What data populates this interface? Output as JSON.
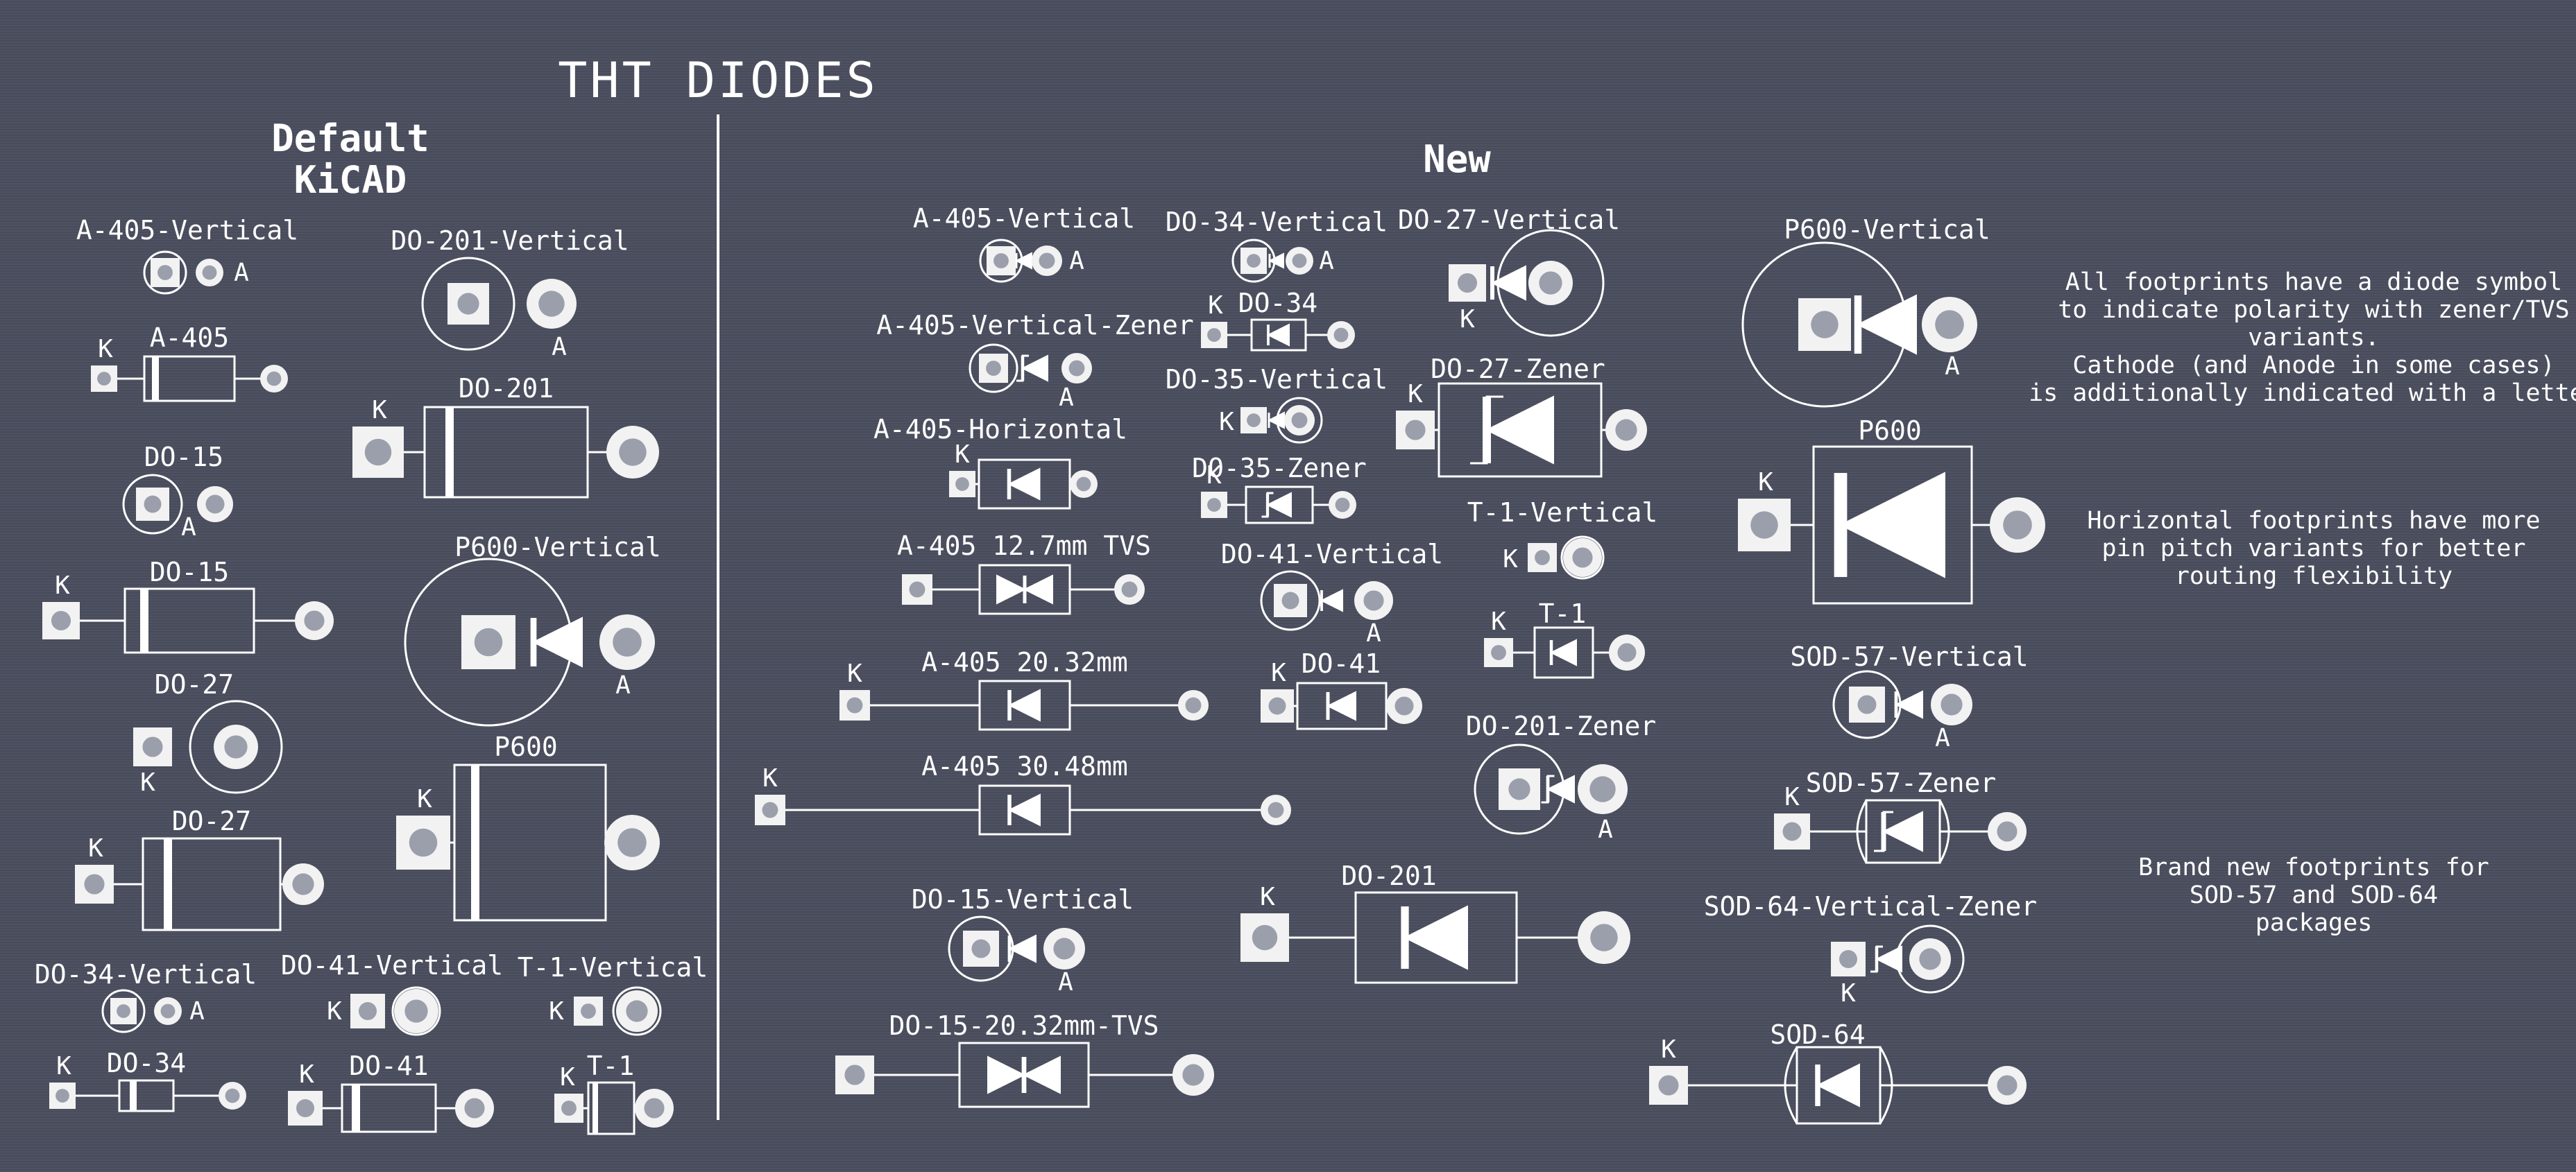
{
  "title": "THT DIODES",
  "headings": {
    "default": [
      "Default",
      "KiCAD"
    ],
    "new": "New"
  },
  "footprints": {
    "a405v": "A-405-Vertical",
    "a405": "A-405",
    "do201v": "DO-201-Vertical",
    "do201": "DO-201",
    "do15": "DO-15",
    "do15h": "DO-15",
    "p600v": "P600-Vertical",
    "do27": "DO-27",
    "do27h": "DO-27",
    "p600": "P600",
    "do34v": "DO-34-Vertical",
    "do41v": "DO-41-Vertical",
    "t1v": "T-1-Vertical",
    "do34": "DO-34",
    "do41": "DO-41",
    "t1": "T-1",
    "n_a405v": "A-405-Vertical",
    "n_a405vz": "A-405-Vertical-Zener",
    "n_a405h": "A-405-Horizontal",
    "n_a405tvs": "A-405 12.7mm TVS",
    "n_a405_20": "A-405 20.32mm",
    "n_a405_30": "A-405 30.48mm",
    "n_do15v": "DO-15-Vertical",
    "n_do15tvs": "DO-15-20.32mm-TVS",
    "n_do34v": "DO-34-Vertical",
    "n_do34": "DO-34",
    "n_do35v": "DO-35-Vertical",
    "n_do35z": "DO-35-Zener",
    "n_do41v": "DO-41-Vertical",
    "n_do41": "DO-41",
    "n_do201": "DO-201",
    "n_do27v": "DO-27-Vertical",
    "n_do27z": "DO-27-Zener",
    "n_t1v": "T-1-Vertical",
    "n_t1": "T-1",
    "n_do201z": "DO-201-Zener",
    "n_p600v": "P600-Vertical",
    "n_p600": "P600",
    "n_sod57v": "SOD-57-Vertical",
    "n_sod57z": "SOD-57-Zener",
    "n_sod64vz": "SOD-64-Vertical-Zener",
    "n_sod64": "SOD-64"
  },
  "pin_letters": {
    "cathode": "K",
    "anode": "A"
  },
  "notes": [
    [
      "All footprints have a diode symbol",
      "to indicate polarity with zener/TVS",
      "variants.",
      "Cathode (and Anode in some cases)",
      "is additionally indicated with a letter"
    ],
    [
      "Horizontal footprints have more",
      "pin pitch variants for better",
      "routing flexibility"
    ],
    [
      "Brand new footprints for",
      "SOD-57 and SOD-64",
      "packages"
    ]
  ],
  "colors": {
    "background": "#4a4e5e",
    "silkscreen": "#ffffff",
    "pad": "#f2f2f2",
    "drill": "#9b9fac"
  }
}
